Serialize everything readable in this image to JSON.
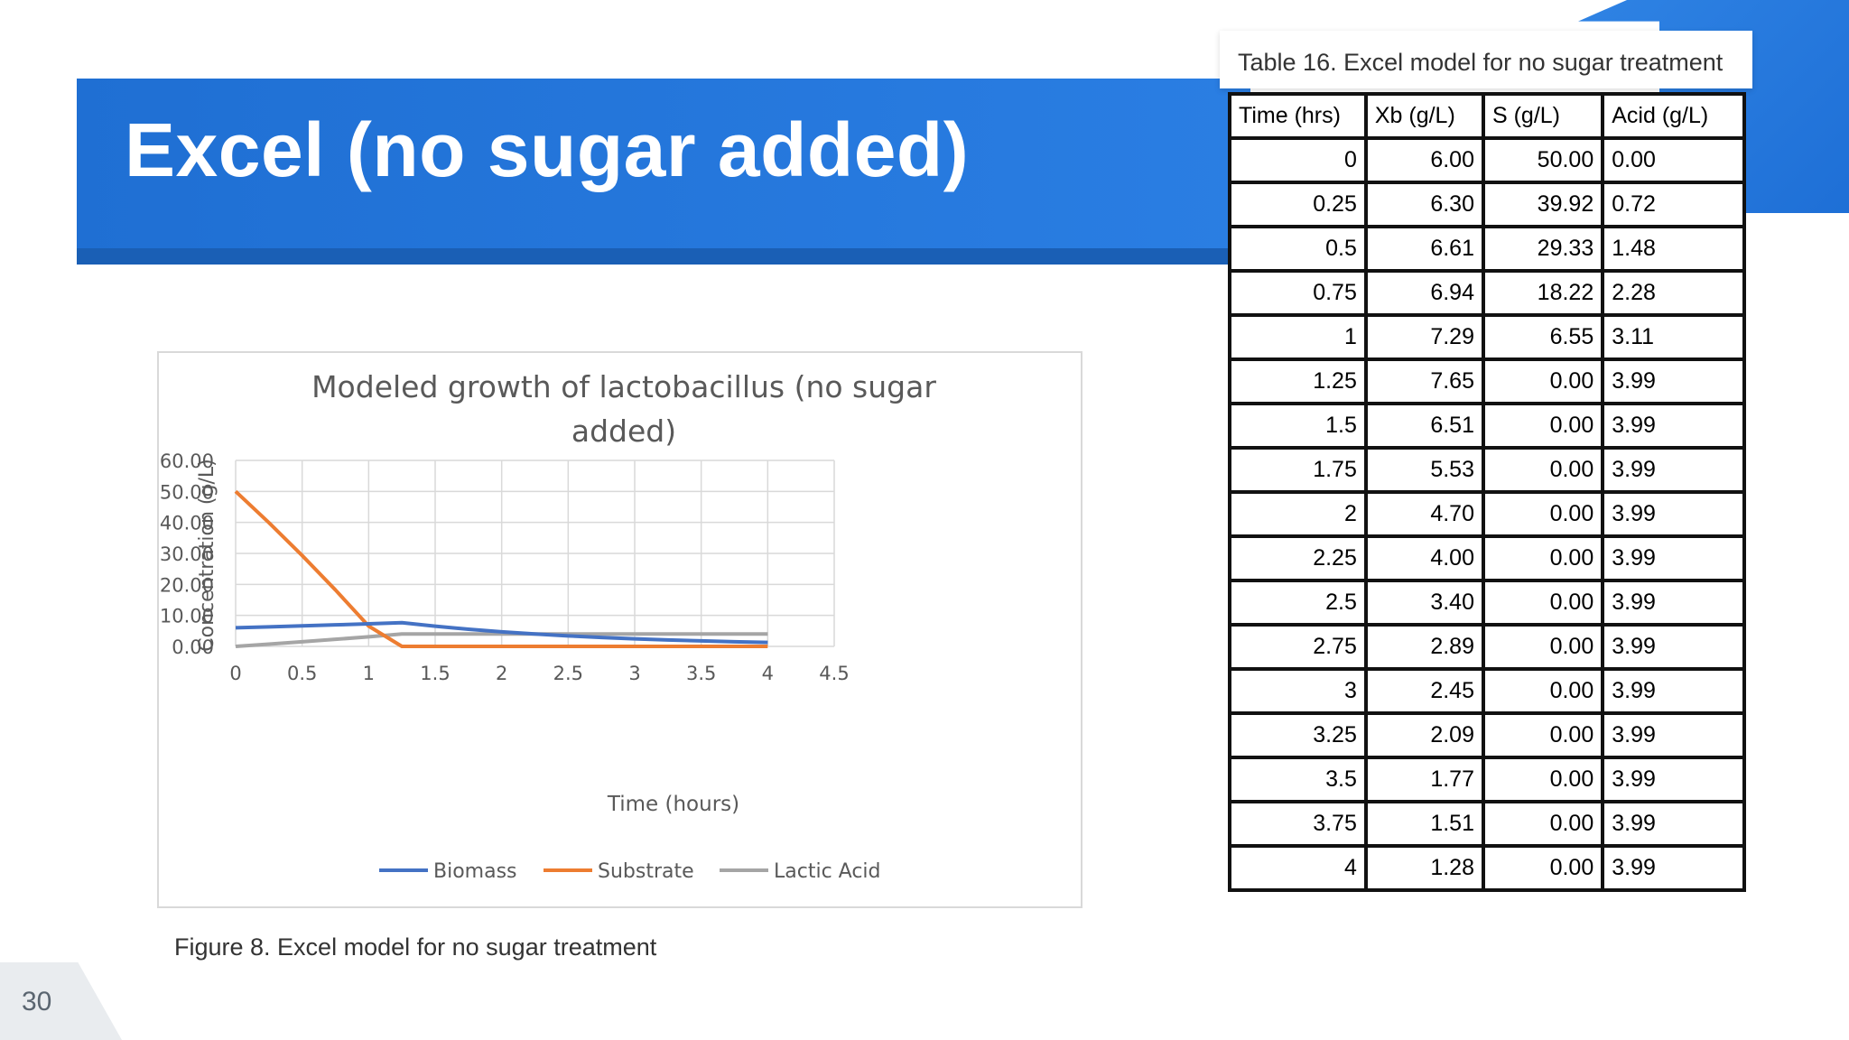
{
  "slide": {
    "title": "Excel (no sugar added)",
    "figure_caption": "Figure 8. Excel model for no sugar treatment",
    "table_caption": "Table 16. Excel model for no sugar treatment",
    "page_number": "30",
    "colors": {
      "primary": "#1f6fd3",
      "biomass": "#4472c4",
      "substrate": "#ed7d31",
      "lactic_acid": "#a5a5a5"
    }
  },
  "table": {
    "headers": [
      "Time (hrs)",
      "Xb (g/L)",
      "S (g/L)",
      "Acid (g/L)"
    ],
    "rows": [
      [
        "0",
        "6.00",
        "50.00",
        "0.00"
      ],
      [
        "0.25",
        "6.30",
        "39.92",
        "0.72"
      ],
      [
        "0.5",
        "6.61",
        "29.33",
        "1.48"
      ],
      [
        "0.75",
        "6.94",
        "18.22",
        "2.28"
      ],
      [
        "1",
        "7.29",
        "6.55",
        "3.11"
      ],
      [
        "1.25",
        "7.65",
        "0.00",
        "3.99"
      ],
      [
        "1.5",
        "6.51",
        "0.00",
        "3.99"
      ],
      [
        "1.75",
        "5.53",
        "0.00",
        "3.99"
      ],
      [
        "2",
        "4.70",
        "0.00",
        "3.99"
      ],
      [
        "2.25",
        "4.00",
        "0.00",
        "3.99"
      ],
      [
        "2.5",
        "3.40",
        "0.00",
        "3.99"
      ],
      [
        "2.75",
        "2.89",
        "0.00",
        "3.99"
      ],
      [
        "3",
        "2.45",
        "0.00",
        "3.99"
      ],
      [
        "3.25",
        "2.09",
        "0.00",
        "3.99"
      ],
      [
        "3.5",
        "1.77",
        "0.00",
        "3.99"
      ],
      [
        "3.75",
        "1.51",
        "0.00",
        "3.99"
      ],
      [
        "4",
        "1.28",
        "0.00",
        "3.99"
      ]
    ]
  },
  "chart_data": {
    "type": "line",
    "title_lines": [
      "Modeled growth of lactobacillus (no sugar",
      "added)"
    ],
    "xlabel": "Time (hours)",
    "ylabel": "Concentration (g/L)",
    "xlim": [
      0,
      4.5
    ],
    "ylim": [
      0,
      60
    ],
    "x_ticks": [
      "0",
      "0.5",
      "1",
      "1.5",
      "2",
      "2.5",
      "3",
      "3.5",
      "4",
      "4.5"
    ],
    "y_ticks": [
      "0.00",
      "10.00",
      "20.00",
      "30.00",
      "40.00",
      "50.00",
      "60.00"
    ],
    "grid": true,
    "legend_position": "bottom",
    "x": [
      0,
      0.25,
      0.5,
      0.75,
      1,
      1.25,
      1.5,
      1.75,
      2,
      2.25,
      2.5,
      2.75,
      3,
      3.25,
      3.5,
      3.75,
      4
    ],
    "series": [
      {
        "name": "Biomass",
        "color": "#4472c4",
        "values": [
          6.0,
          6.3,
          6.61,
          6.94,
          7.29,
          7.65,
          6.51,
          5.53,
          4.7,
          4.0,
          3.4,
          2.89,
          2.45,
          2.09,
          1.77,
          1.51,
          1.28
        ]
      },
      {
        "name": "Substrate",
        "color": "#ed7d31",
        "values": [
          50.0,
          39.92,
          29.33,
          18.22,
          6.55,
          0.0,
          0.0,
          0.0,
          0.0,
          0.0,
          0.0,
          0.0,
          0.0,
          0.0,
          0.0,
          0.0,
          0.0
        ]
      },
      {
        "name": "Lactic Acid",
        "color": "#a5a5a5",
        "values": [
          0.0,
          0.72,
          1.48,
          2.28,
          3.11,
          3.99,
          3.99,
          3.99,
          3.99,
          3.99,
          3.99,
          3.99,
          3.99,
          3.99,
          3.99,
          3.99,
          3.99
        ]
      }
    ]
  }
}
